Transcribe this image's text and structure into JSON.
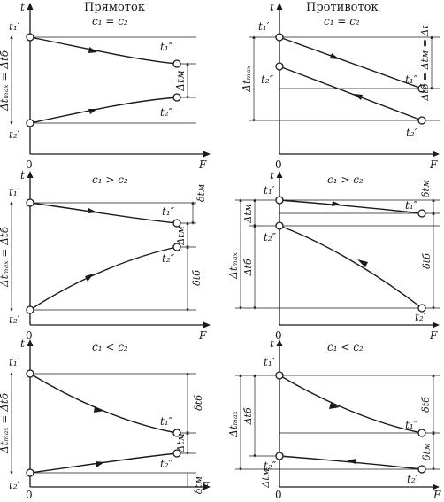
{
  "axis_labels": {
    "vertical": "t",
    "horizontal": "F",
    "origin": "0"
  },
  "panels": [
    {
      "id": "parallel-equal",
      "flow": "Прямоток",
      "condition": "c₁ = c₂",
      "labels": {
        "hot_in": "t₁′",
        "cold_in": "t₂′",
        "hot_out": "t₁″",
        "cold_out": "t₂″",
        "dt_max": "Δtₘₐₓ = Δtб",
        "dt_m": "Δtм"
      }
    },
    {
      "id": "counter-equal",
      "flow": "Противоток",
      "condition": "c₁ = c₂",
      "labels": {
        "hot_in": "t₁′",
        "cold_in": "t₂′",
        "hot_out": "t₁″",
        "cold_out": "t₂″",
        "dt_max": "Δtₘₐₓ",
        "dt_eq": "Δtб = Δtм = Δt"
      }
    },
    {
      "id": "parallel-c1-greater",
      "condition": "c₁ > c₂",
      "labels": {
        "hot_in": "t₁′",
        "cold_in": "t₂′",
        "hot_out": "t₁″",
        "cold_out": "t₂″",
        "dt_max": "Δtₘₐₓ = Δtб",
        "dt_m": "Δtм",
        "d_t1": "δtм",
        "d_t2": "δtб"
      }
    },
    {
      "id": "counter-c1-greater",
      "condition": "c₁ > c₂",
      "labels": {
        "hot_in": "t₁′",
        "cold_in": "t₂′",
        "hot_out": "t₁″",
        "cold_out": "t₂″",
        "dt_max": "Δtₘₐₓ",
        "dt_m": "Δtм",
        "dt_b": "Δtб",
        "d_t1": "δtм",
        "d_t2": "δtб"
      }
    },
    {
      "id": "parallel-c1-less",
      "condition": "c₁ < c₂",
      "labels": {
        "hot_in": "t₁′",
        "cold_in": "t₂′",
        "hot_out": "t₁″",
        "cold_out": "t₂″",
        "dt_max": "Δtₘₐₓ = Δtб",
        "dt_m": "Δtм",
        "d_t1": "δtб",
        "d_t2": "δtм"
      }
    },
    {
      "id": "counter-c1-less",
      "condition": "c₁ < c₂",
      "labels": {
        "hot_in": "t₁′",
        "cold_in": "t₂′",
        "hot_out": "t₁″",
        "cold_out": "t₂″",
        "dt_max": "Δtₘₐₓ",
        "dt_m": "Δtм",
        "dt_b": "Δtб",
        "d_t1": "δtб",
        "d_t2": "δtм"
      }
    }
  ]
}
